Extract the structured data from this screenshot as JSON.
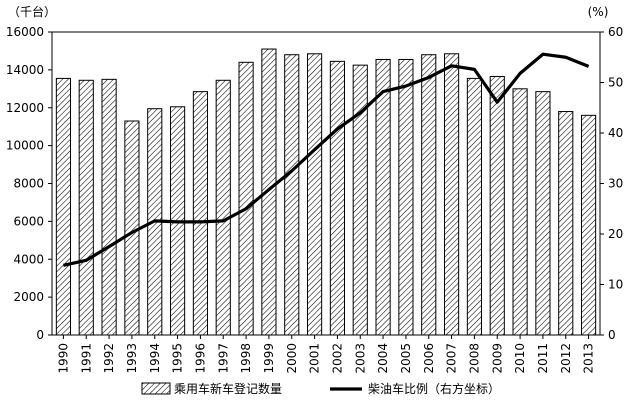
{
  "chart_data": {
    "type": "bar",
    "categories": [
      "1990",
      "1991",
      "1992",
      "1993",
      "1994",
      "1995",
      "1996",
      "1997",
      "1998",
      "1999",
      "2000",
      "2001",
      "2002",
      "2003",
      "2004",
      "2005",
      "2006",
      "2007",
      "2008",
      "2009",
      "2010",
      "2011",
      "2012",
      "2013"
    ],
    "left_axis": {
      "unit_label": "（千台）",
      "ylim": [
        0,
        16000
      ],
      "ticks": [
        0,
        2000,
        4000,
        6000,
        8000,
        10000,
        12000,
        14000,
        16000
      ]
    },
    "right_axis": {
      "unit_label": "(%)",
      "ylim": [
        0,
        60
      ],
      "ticks": [
        0,
        10,
        20,
        30,
        40,
        50,
        60
      ]
    },
    "series": [
      {
        "name": "乘用车新车登记数量",
        "kind": "bar",
        "axis": "left",
        "pattern": "diagonal-hatch",
        "values": [
          13550,
          13450,
          13500,
          11300,
          11950,
          12050,
          12850,
          13450,
          14400,
          15100,
          14800,
          14850,
          14450,
          14250,
          14550,
          14550,
          14800,
          14850,
          13550,
          13650,
          13000,
          12850,
          11800,
          11600
        ]
      },
      {
        "name": "柴油车比例（右方坐标）",
        "kind": "line",
        "axis": "right",
        "color": "#000000",
        "values": [
          13.8,
          14.8,
          17.5,
          20.3,
          22.6,
          22.4,
          22.4,
          22.6,
          25.0,
          28.8,
          32.5,
          36.7,
          40.8,
          44.0,
          48.2,
          49.3,
          51.0,
          53.3,
          52.6,
          46.1,
          51.8,
          55.6,
          55.0,
          53.2
        ]
      }
    ],
    "legend_placement": "bottom",
    "grid": false
  }
}
